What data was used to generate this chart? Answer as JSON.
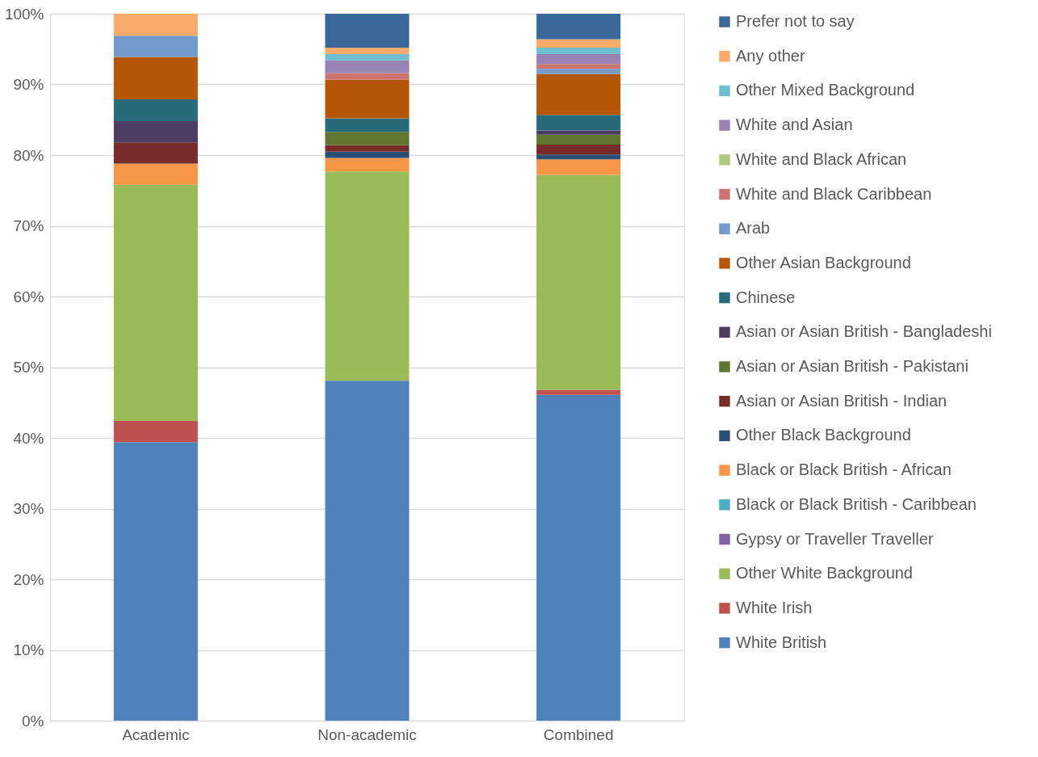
{
  "chart_data": {
    "type": "bar",
    "stacked": true,
    "categories": [
      "Academic",
      "Non-academic",
      "Combined"
    ],
    "ylim": [
      0,
      100
    ],
    "yticks": [
      {
        "value": 0,
        "label": "0%"
      },
      {
        "value": 10,
        "label": "10%"
      },
      {
        "value": 20,
        "label": "20%"
      },
      {
        "value": 30,
        "label": "30%"
      },
      {
        "value": 40,
        "label": "40%"
      },
      {
        "value": 50,
        "label": "50%"
      },
      {
        "value": 60,
        "label": "60%"
      },
      {
        "value": 70,
        "label": "70%"
      },
      {
        "value": 80,
        "label": "80%"
      },
      {
        "value": 90,
        "label": "90%"
      },
      {
        "value": 100,
        "label": "100%"
      }
    ],
    "grid": "y",
    "legend": "right",
    "series": [
      {
        "name": "White British",
        "color": "#4f81bd",
        "values": [
          39.4,
          48.1,
          46.1
        ]
      },
      {
        "name": "White Irish",
        "color": "#c0504d",
        "values": [
          3.0,
          0,
          0.7
        ]
      },
      {
        "name": "Other White Background",
        "color": "#9bbb59",
        "values": [
          33.4,
          29.6,
          30.4
        ]
      },
      {
        "name": "Gypsy or Traveller Traveller",
        "color": "#8064a2",
        "values": [
          0,
          0,
          0
        ]
      },
      {
        "name": "Black or Black British - Caribbean",
        "color": "#4bacc6",
        "values": [
          0,
          0,
          0
        ]
      },
      {
        "name": "Black or Black British - African",
        "color": "#f79646",
        "values": [
          3.0,
          1.9,
          2.2
        ]
      },
      {
        "name": "Other Black Background",
        "color": "#2c4d75",
        "values": [
          0,
          0.9,
          0.7
        ]
      },
      {
        "name": "Asian or Asian British - Indian",
        "color": "#772c2a",
        "values": [
          3.0,
          0.9,
          1.4
        ]
      },
      {
        "name": "Asian or Asian British - Pakistani",
        "color": "#5f7530",
        "values": [
          0,
          1.9,
          1.4
        ]
      },
      {
        "name": "Asian or Asian British - Bangladeshi",
        "color": "#4d3b62",
        "values": [
          3.0,
          0,
          0.6
        ]
      },
      {
        "name": "Chinese",
        "color": "#276a7c",
        "values": [
          3.1,
          1.9,
          2.2
        ]
      },
      {
        "name": "Other Asian Background",
        "color": "#b65708",
        "values": [
          6.0,
          5.5,
          5.8
        ]
      },
      {
        "name": "Arab",
        "color": "#729aca",
        "values": [
          3.0,
          0,
          0.7
        ]
      },
      {
        "name": "White and Black Caribbean",
        "color": "#cd7371",
        "values": [
          0,
          0.9,
          0.7
        ]
      },
      {
        "name": "White and Black African",
        "color": "#afc97a",
        "values": [
          0,
          0,
          0
        ]
      },
      {
        "name": "White and Asian",
        "color": "#9983b5",
        "values": [
          0,
          1.8,
          1.4
        ]
      },
      {
        "name": "Other Mixed Background",
        "color": "#6fbdd1",
        "values": [
          0,
          0.9,
          0.9
        ]
      },
      {
        "name": "Any other",
        "color": "#f9ab6b",
        "values": [
          3.1,
          0.9,
          1.2
        ]
      },
      {
        "name": "Prefer not to say",
        "color": "#3a6899",
        "values": [
          0,
          4.8,
          3.6
        ]
      }
    ]
  }
}
